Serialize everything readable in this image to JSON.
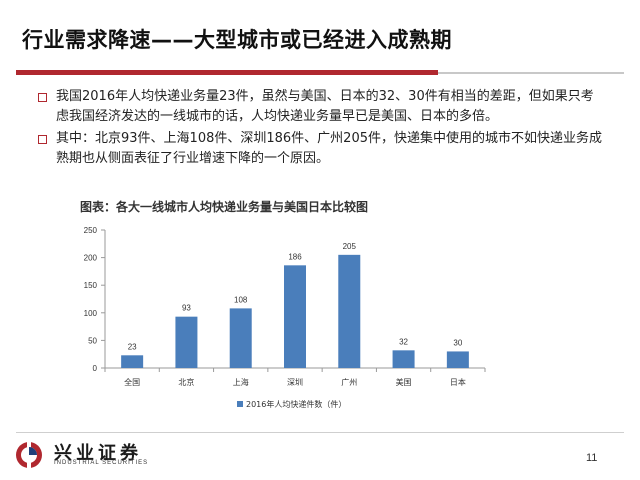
{
  "slide": {
    "title": "行业需求降速——大型城市或已经进入成熟期",
    "bullets": [
      "我国2016年人均快递业务量23件，虽然与美国、日本的32、30件有相当的差距，但如果只考虑我国经济发达的一线城市的话，人均快递业务量早已是美国、日本的多倍。",
      "其中：北京93件、上海108件、深圳186件、广州205件，快递集中使用的城市不如快递业务成熟期也从侧面表征了行业增速下降的一个原因。"
    ],
    "chart_caption": "图表：各大一线城市人均快递业务量与美国日本比较图",
    "page_number": "11"
  },
  "brand": {
    "name_cn": "兴业证券",
    "name_en": "INDUSTRIAL SECURITIES",
    "icon": "industrial-securities-logo-icon"
  },
  "colors": {
    "accent_red": "#b0282f",
    "bar_blue": "#4a7ebb"
  },
  "chart_data": {
    "type": "bar",
    "categories": [
      "全国",
      "北京",
      "上海",
      "深圳",
      "广州",
      "美国",
      "日本"
    ],
    "series": [
      {
        "name": "2016年人均快递件数（件）",
        "values": [
          23,
          93,
          108,
          186,
          205,
          32,
          30
        ]
      }
    ],
    "yticks": [
      "0",
      "50",
      "100",
      "150",
      "200",
      "250"
    ],
    "ylim": [
      0,
      250
    ],
    "grid": false,
    "legend": "bottom",
    "data_labels": true
  }
}
